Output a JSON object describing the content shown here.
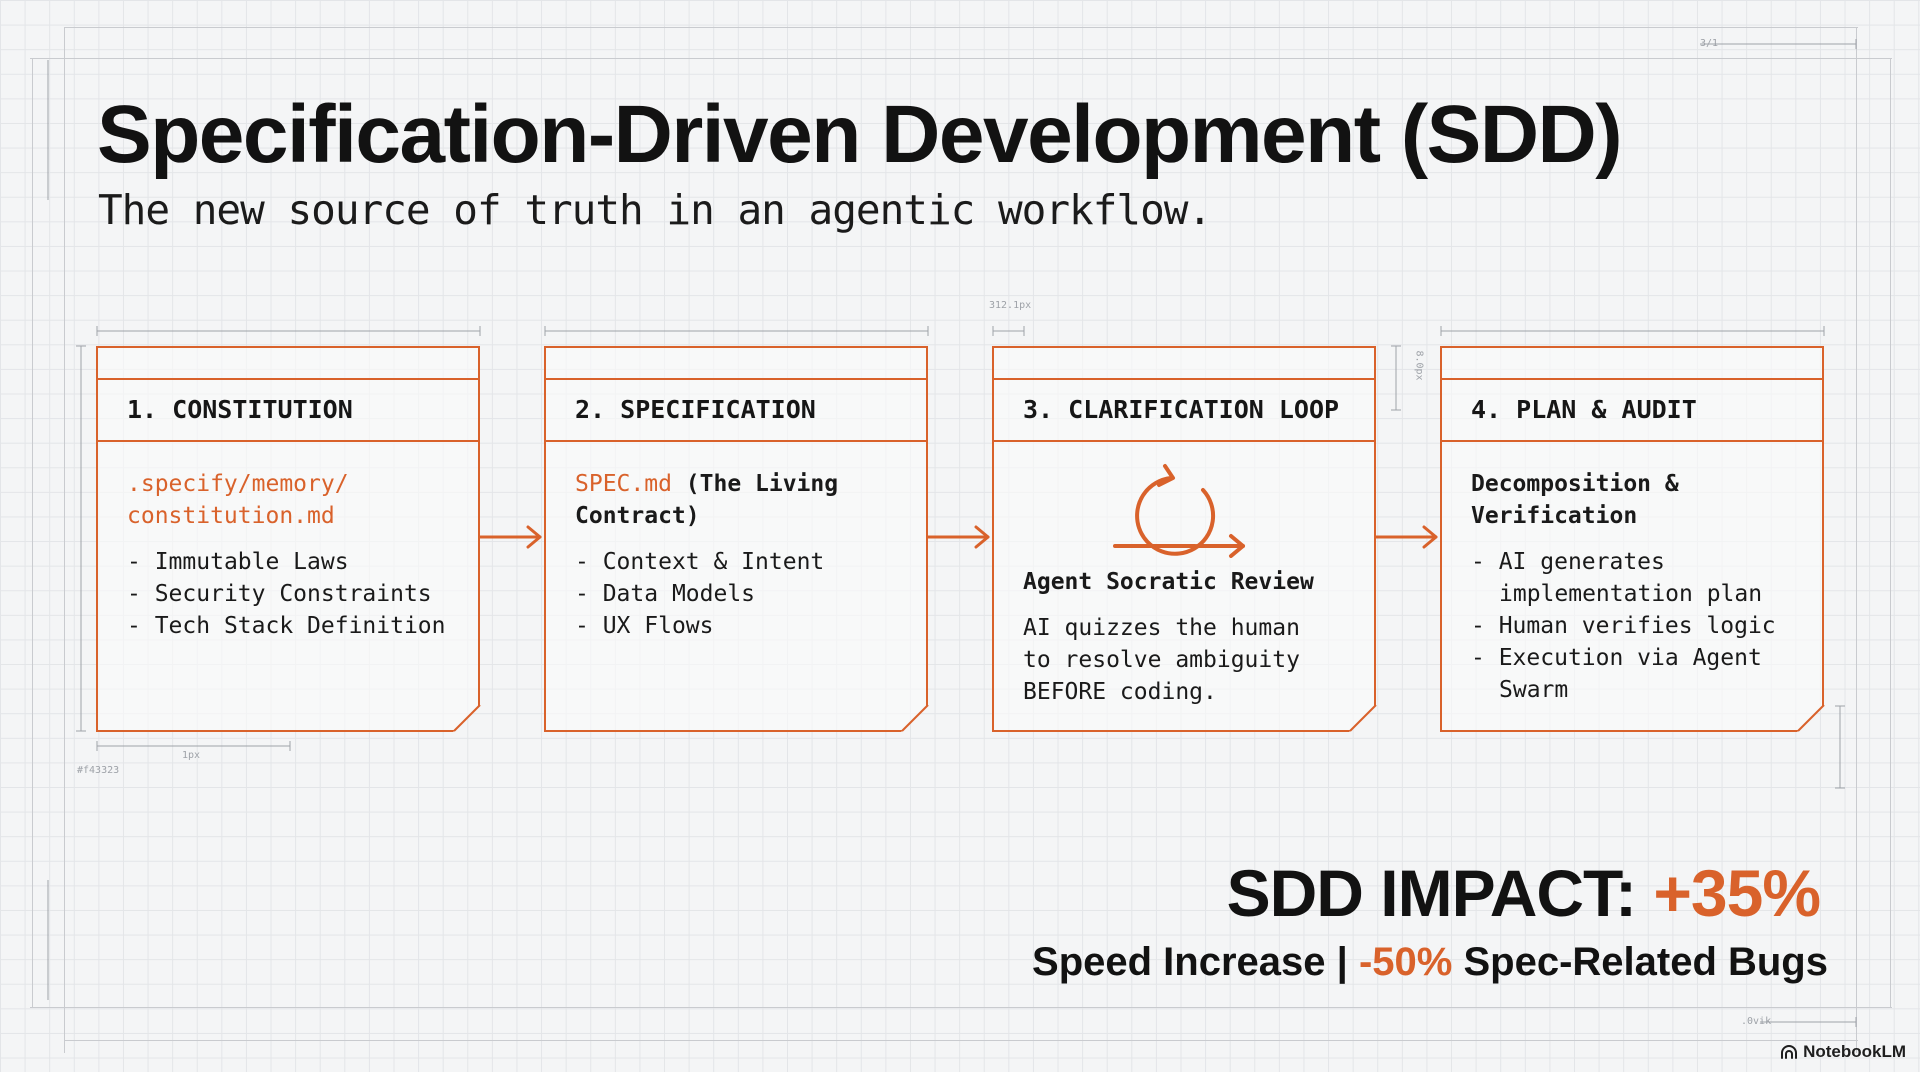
{
  "header": {
    "title": "Specification-Driven Development (SDD)",
    "subtitle": "The new source of truth in an agentic workflow."
  },
  "steps": [
    {
      "heading": "1. CONSTITUTION",
      "intro_accent": ".specify/memory/ constitution.md",
      "intro_rest": "",
      "items": [
        "Immutable Laws",
        "Security Constraints",
        "Tech Stack Definition"
      ]
    },
    {
      "heading": "2. SPECIFICATION",
      "intro_accent": "SPEC.md",
      "intro_rest": " (The Living Contract)",
      "items": [
        "Context & Intent",
        "Data Models",
        "UX Flows"
      ]
    },
    {
      "heading": "3. CLARIFICATION LOOP",
      "icon": "refresh-loop-icon",
      "subheading": "Agent Socratic Review",
      "text": "AI quizzes the human to resolve ambiguity BEFORE coding."
    },
    {
      "heading": "4. PLAN & AUDIT",
      "subheading": "Decomposition & Verification",
      "items": [
        "AI generates implementation plan",
        "Human verifies logic",
        "Execution via Agent Swarm"
      ]
    }
  ],
  "impact": {
    "label": "SDD IMPACT: ",
    "speed_value": "+35%",
    "speed_label": "Speed Increase",
    "separator": " | ",
    "bugs_value": "-50%",
    "bugs_label": " Spec-Related Bugs"
  },
  "annotations": {
    "dim1": "312.1px",
    "dim2": "8.0px",
    "dim3": "1px",
    "dim4": "#f43323",
    "dim5": "3/1",
    "dim6": ".0vik"
  },
  "branding": {
    "icon": "notebooklm-logo-icon",
    "label": "NotebookLM"
  },
  "colors": {
    "accent": "#d9622b",
    "text": "#141414",
    "background": "#f4f5f6",
    "grid": "#e3e5e8"
  }
}
